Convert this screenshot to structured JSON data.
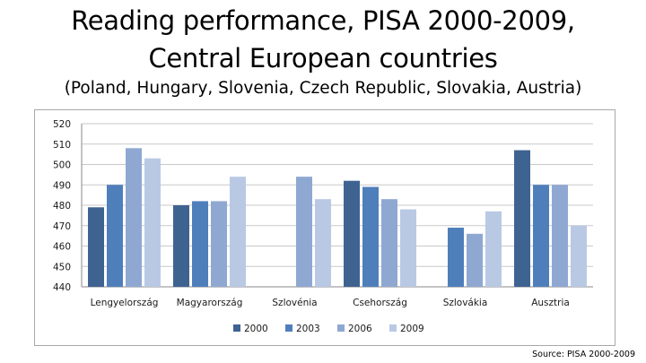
{
  "title_line1": "Reading performance, PISA 2000-2009,",
  "title_line2": "Central European countries",
  "subtitle": "(Poland, Hungary, Slovenia, Czech Republic, Slovakia, Austria)",
  "source": "Source: PISA 2000-2009",
  "chart_data": {
    "type": "bar",
    "categories": [
      "Lengyelország",
      "Magyarország",
      "Szlovénia",
      "Csehország",
      "Szlovákia",
      "Ausztria"
    ],
    "series": [
      {
        "name": "2000",
        "color": "#3f6391",
        "values": [
          479,
          480,
          null,
          492,
          null,
          507
        ]
      },
      {
        "name": "2003",
        "color": "#4f7fbb",
        "values": [
          490,
          482,
          null,
          489,
          469,
          490
        ]
      },
      {
        "name": "2006",
        "color": "#8fa8d2",
        "values": [
          508,
          482,
          494,
          483,
          466,
          490
        ]
      },
      {
        "name": "2009",
        "color": "#b9c9e4",
        "values": [
          503,
          494,
          483,
          478,
          477,
          470
        ]
      }
    ],
    "ylim": [
      440,
      520
    ],
    "yticks": [
      440,
      450,
      460,
      470,
      480,
      490,
      500,
      510,
      520
    ],
    "grid": true,
    "legend": "bottom"
  }
}
